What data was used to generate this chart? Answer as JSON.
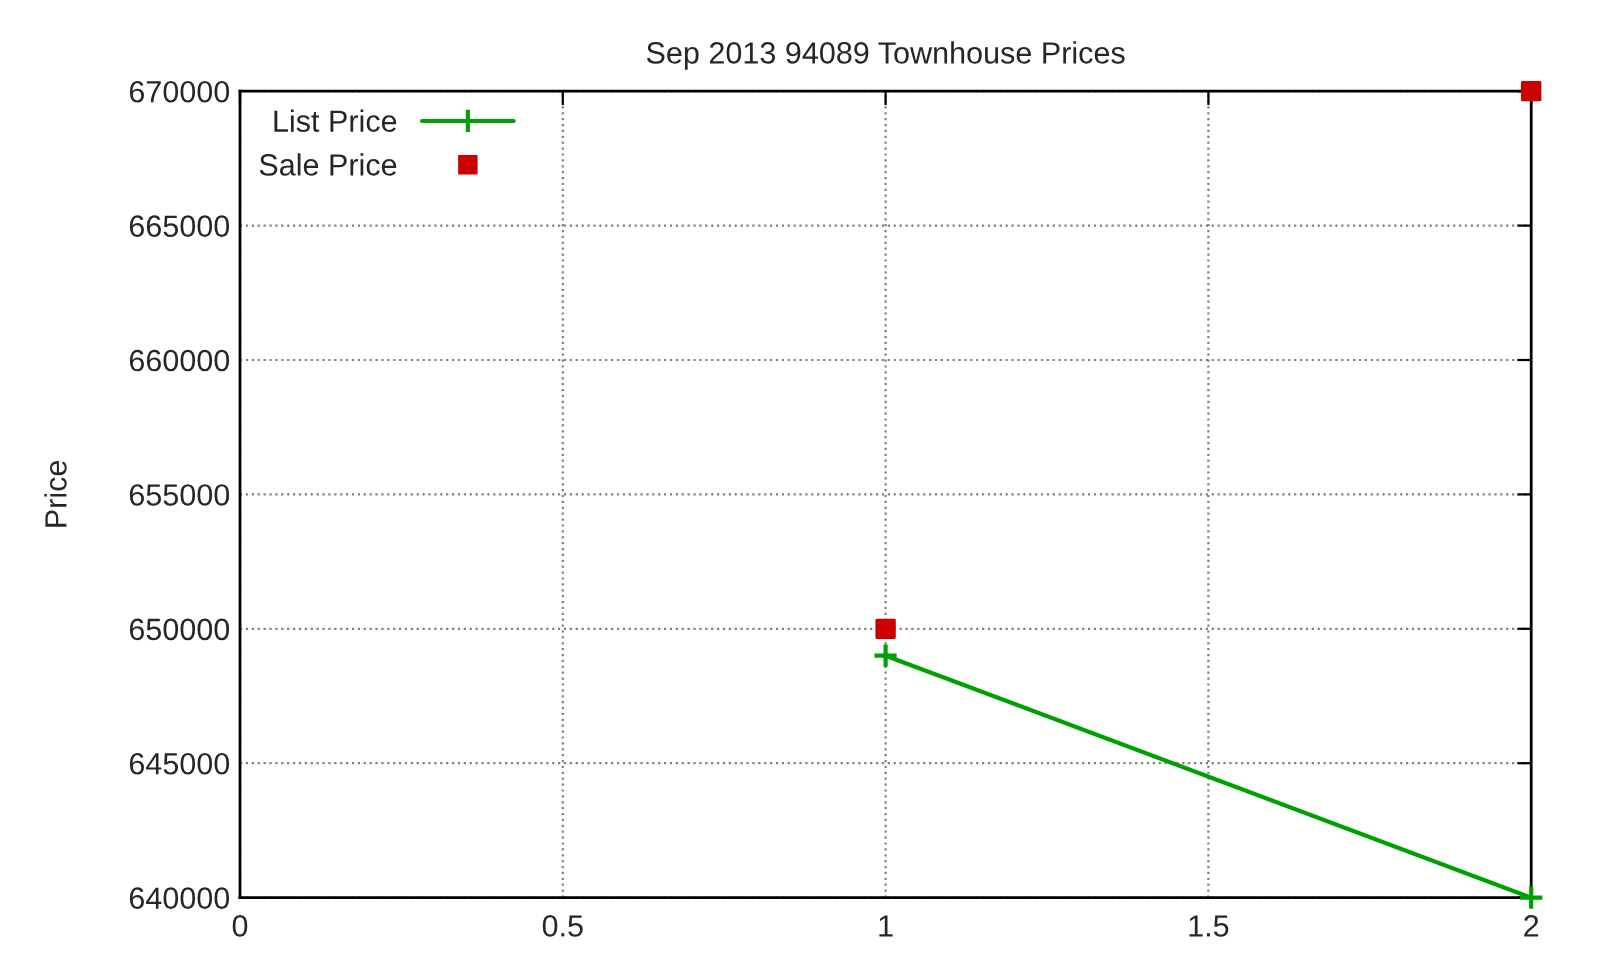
{
  "chart_data": {
    "type": "line",
    "title": "Sep 2013 94089 Townhouse Prices",
    "ylabel": "Price",
    "series": [
      {
        "name": "List Price",
        "color": "#00a000",
        "marker": "cross",
        "line_style": "solid",
        "values": [
          649000,
          640000
        ]
      },
      {
        "name": "Sale Price",
        "type": "scatter",
        "color": "#cc0000",
        "marker": "square",
        "values": [
          650000,
          670000
        ]
      }
    ],
    "x": [
      1,
      2
    ],
    "xlim": [
      0,
      2
    ],
    "xticks": [
      0,
      0.5,
      1,
      1.5,
      2
    ],
    "ylim": [
      640000,
      670000
    ],
    "yticks": [
      640000,
      645000,
      650000,
      655000,
      660000,
      665000,
      670000
    ],
    "grid": true,
    "legend": "top left"
  }
}
